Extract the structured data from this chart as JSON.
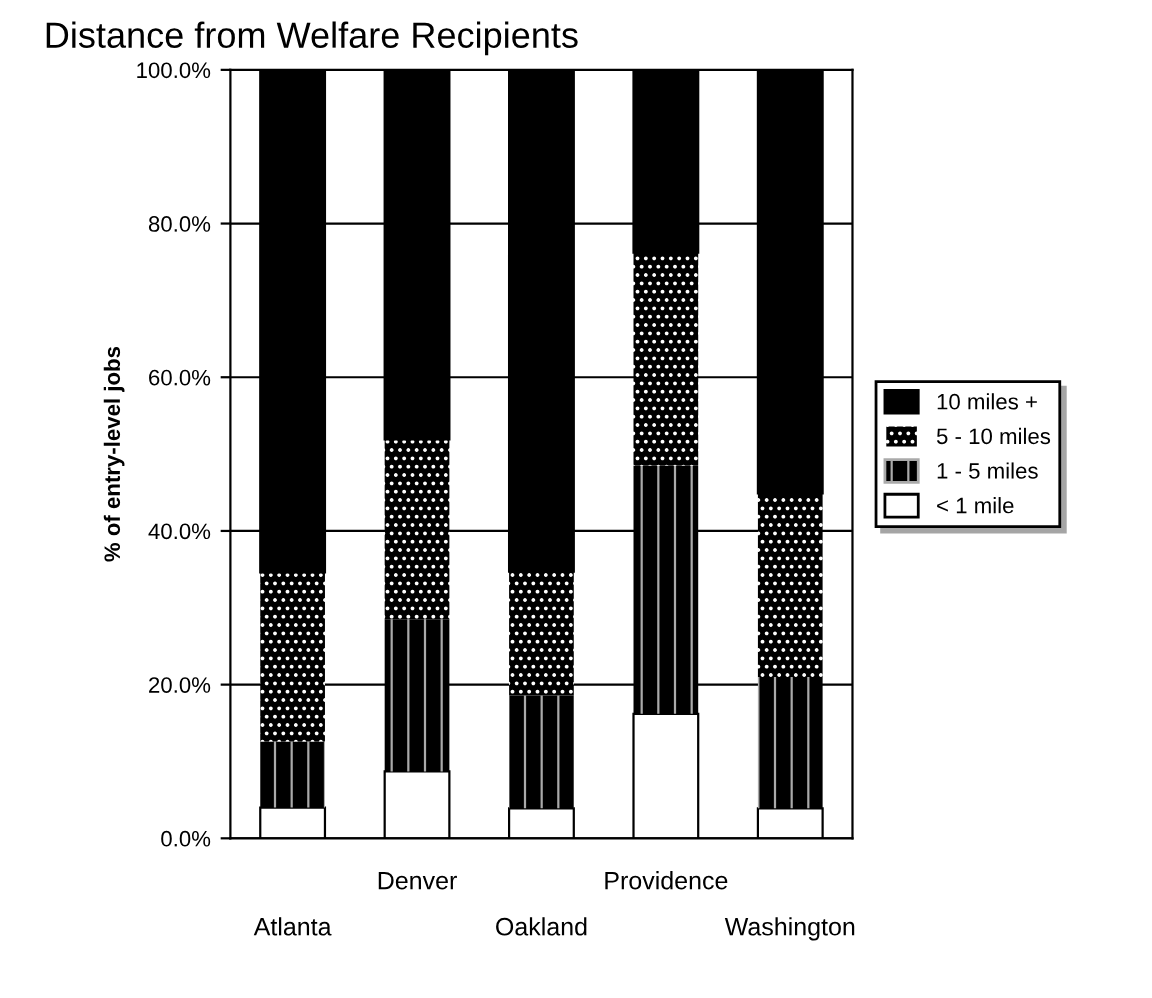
{
  "chart_data": {
    "type": "bar",
    "stacked": true,
    "title": "Distance from Welfare Recipients",
    "ylabel": "% of entry-level jobs",
    "categories": [
      "Atlanta",
      "Denver",
      "Oakland",
      "Providence",
      "Washington"
    ],
    "series": [
      {
        "name": "< 1 mile",
        "color": "#ffffff",
        "values": [
          4.0,
          8.7,
          3.9,
          16.2,
          3.9
        ]
      },
      {
        "name": "1 - 5 miles",
        "color": "#000000",
        "values": [
          8.6,
          19.8,
          14.7,
          32.3,
          17.1
        ]
      },
      {
        "name": "5 - 10 miles",
        "color": "#000000",
        "values": [
          22.0,
          23.4,
          16.1,
          27.7,
          23.9
        ]
      },
      {
        "name": "10 miles +",
        "color": "#000000",
        "values": [
          65.4,
          48.1,
          65.3,
          23.8,
          55.1
        ]
      }
    ],
    "ylim": [
      0,
      100
    ],
    "yticks": [
      {
        "value": 0,
        "label": "0.0%"
      },
      {
        "value": 20,
        "label": "20.0%"
      },
      {
        "value": 40,
        "label": "40.0%"
      },
      {
        "value": 60,
        "label": "60.0%"
      },
      {
        "value": 80,
        "label": "80.0%"
      },
      {
        "value": 100,
        "label": "100.0%"
      }
    ],
    "grid": "y",
    "legend": "right"
  }
}
